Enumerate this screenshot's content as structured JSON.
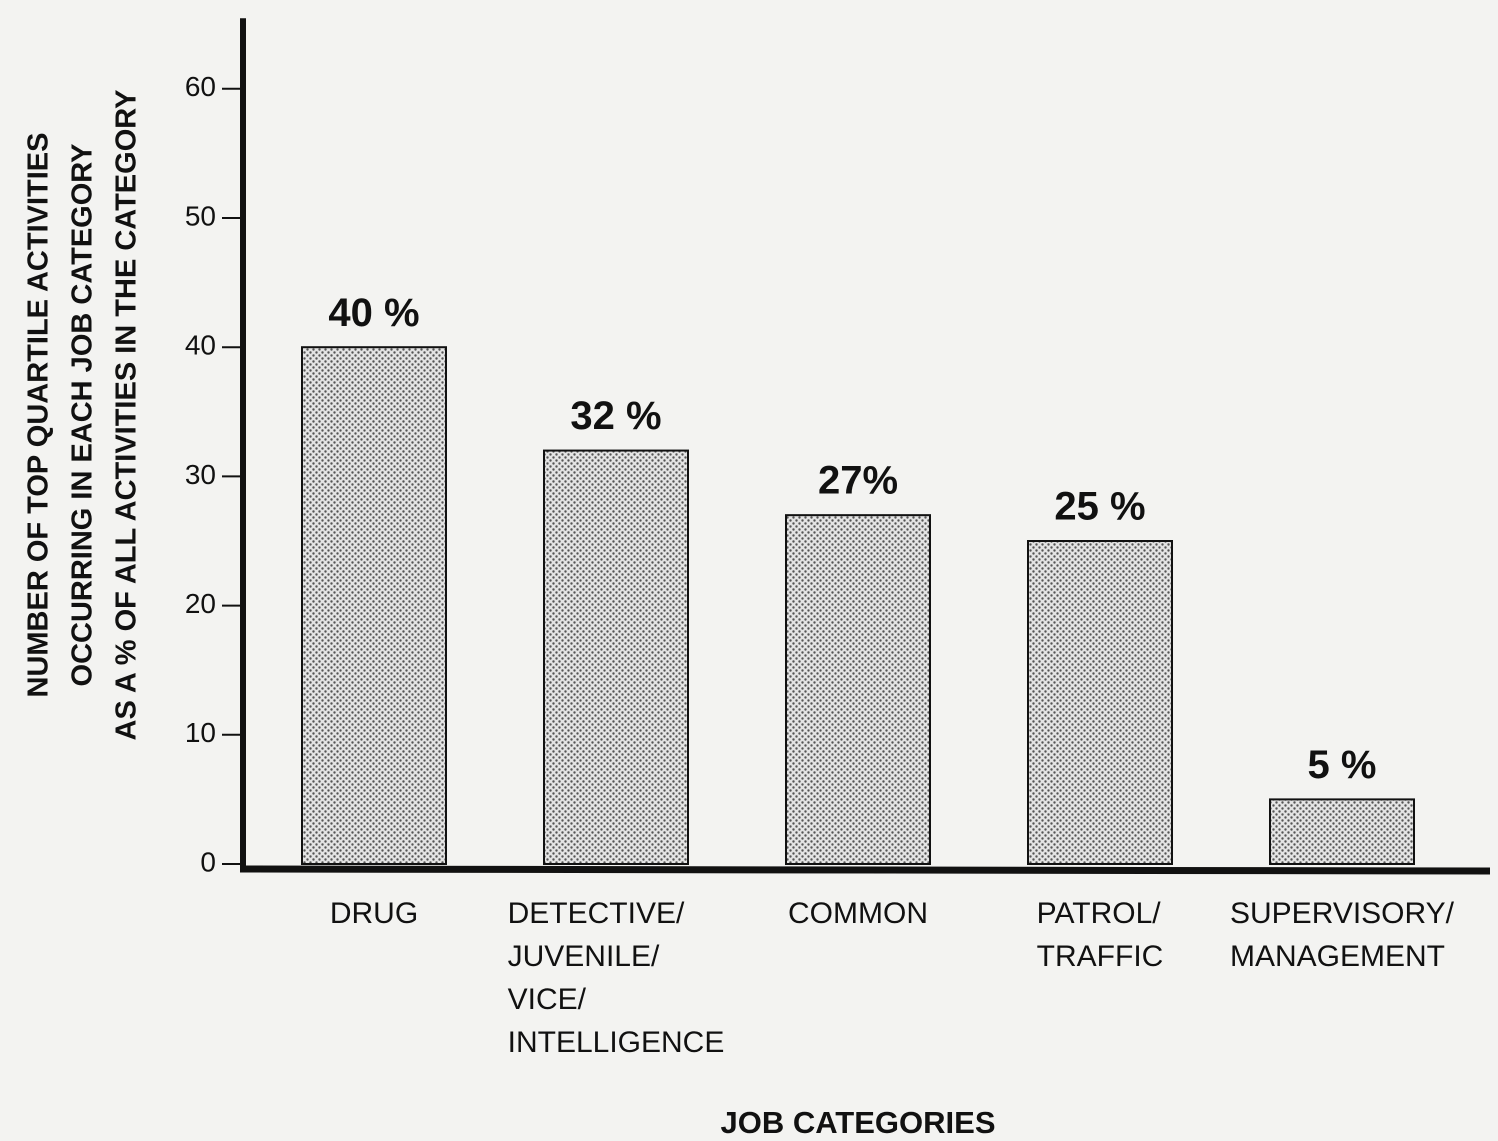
{
  "chart_data": {
    "type": "bar",
    "y_axis_label": [
      "NUMBER OF TOP QUARTILE ACTIVITIES",
      "OCCURRING IN EACH JOB CATEGORY",
      "AS A % OF ALL ACTIVITIES IN THE CATEGORY"
    ],
    "x_axis_label": "JOB CATEGORIES",
    "categories": [
      [
        "DRUG"
      ],
      [
        "DETECTIVE/",
        "JUVENILE/",
        "VICE/",
        "INTELLIGENCE"
      ],
      [
        "COMMON"
      ],
      [
        "PATROL/",
        "TRAFFIC"
      ],
      [
        "SUPERVISORY/",
        "MANAGEMENT"
      ]
    ],
    "values": [
      40,
      32,
      27,
      25,
      5
    ],
    "value_labels": [
      "40 %",
      "32 %",
      "27%",
      "25 %",
      "5 %"
    ],
    "color": "#8a8a8a",
    "ylim": [
      0,
      65
    ],
    "yticks": [
      0,
      10,
      20,
      30,
      40,
      50,
      60
    ],
    "grid": false
  }
}
